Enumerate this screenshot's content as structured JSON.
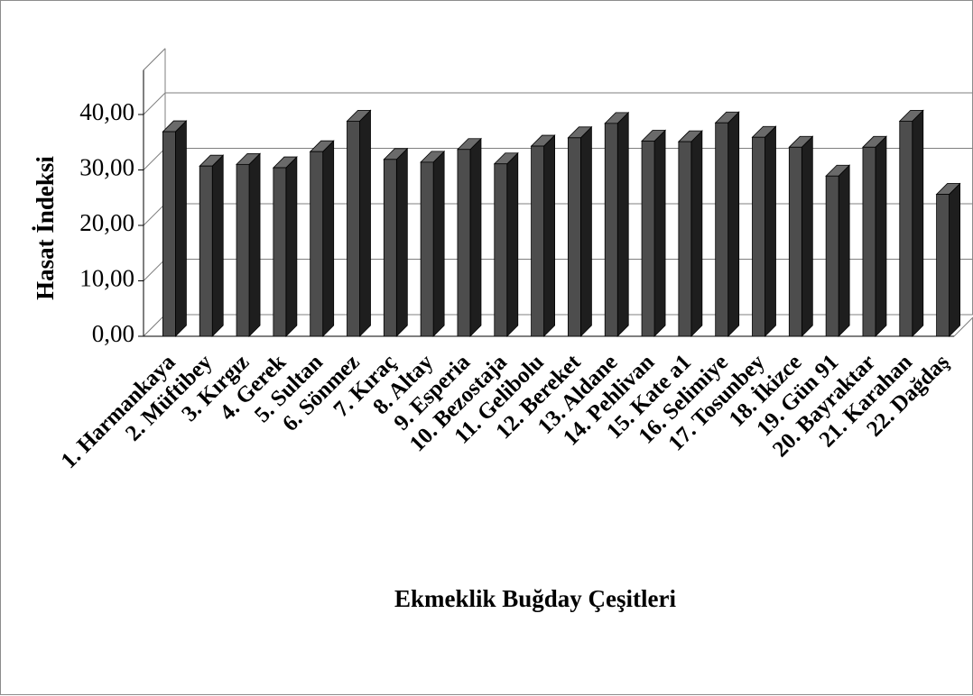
{
  "chart_data": {
    "type": "bar",
    "style": "3d",
    "title": "",
    "xlabel": "Ekmeklik Buğday Çeşitleri",
    "ylabel": "Hasat İndeksi",
    "ylim": [
      0,
      40
    ],
    "yticks": [
      "0,00",
      "10,00",
      "20,00",
      "30,00",
      "40,00"
    ],
    "grid": true,
    "legend": "none",
    "bar_color": "#4d4d4d",
    "categories": [
      "1. Harmankaya",
      "2. Müftibey",
      "3. Kırgız",
      "4. Gerek",
      "5. Sultan",
      "6. Sönmez",
      "7. Kıraç",
      "8.  Altay",
      "9. Esperia",
      "10. Bezostaja",
      "11. Gelibolu",
      "12. Bereket",
      "13. Aldane",
      "14. Pehlivan",
      "15. Kate a1",
      "16. Selimiye",
      "17. Tosunbey",
      "18. İkizce",
      "19. Gün 91",
      "20. Bayraktar",
      "21. Karahan",
      "22. Dağdaş"
    ],
    "values": [
      36.9,
      30.7,
      31.0,
      30.4,
      33.3,
      38.8,
      31.9,
      31.4,
      33.7,
      31.1,
      34.3,
      35.8,
      38.4,
      35.2,
      35.1,
      38.5,
      35.9,
      34.1,
      28.9,
      34.1,
      38.8,
      25.6
    ]
  }
}
